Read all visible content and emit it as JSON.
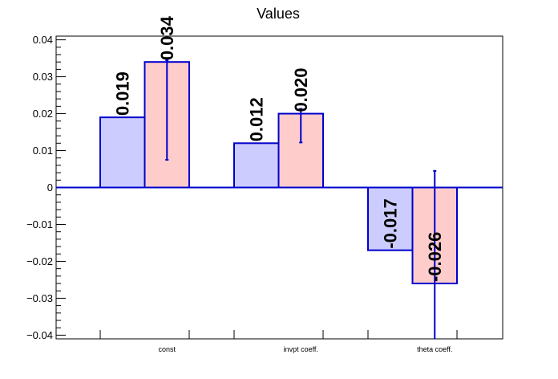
{
  "chart_data": {
    "type": "bar",
    "title": "Values",
    "xlabel": "",
    "ylabel": "",
    "ylim": [
      -0.041,
      0.041
    ],
    "yticks": [
      "0.04",
      "0.03",
      "0.02",
      "0.01",
      "0",
      "−0.01",
      "−0.02",
      "−0.03",
      "−0.04"
    ],
    "ytick_values": [
      0.04,
      0.03,
      0.02,
      0.01,
      0,
      -0.01,
      -0.02,
      -0.03,
      -0.04
    ],
    "categories": [
      "const",
      "invpt coeff.",
      "theta coeff."
    ],
    "series": [
      {
        "values": [
          0.019,
          0.012,
          -0.017
        ],
        "labels": [
          "0.019",
          "0.012",
          "-0.017"
        ],
        "fill": "#ccccff",
        "stroke": "#0000cc"
      },
      {
        "values": [
          0.034,
          0.02,
          -0.026
        ],
        "labels": [
          "0.034",
          "0.020",
          "-0.026"
        ],
        "err_low": [
          0.0075,
          0.0122,
          -0.041
        ],
        "err_high": [
          0.0345,
          0.0213,
          0.0045
        ],
        "fill": "#ffcccc",
        "stroke": "#0000cc"
      }
    ],
    "grid": false,
    "legend": "none",
    "colors": {
      "axis": "#000000",
      "zero_line": "#0000cc",
      "errorbar": "#0000cc"
    }
  }
}
